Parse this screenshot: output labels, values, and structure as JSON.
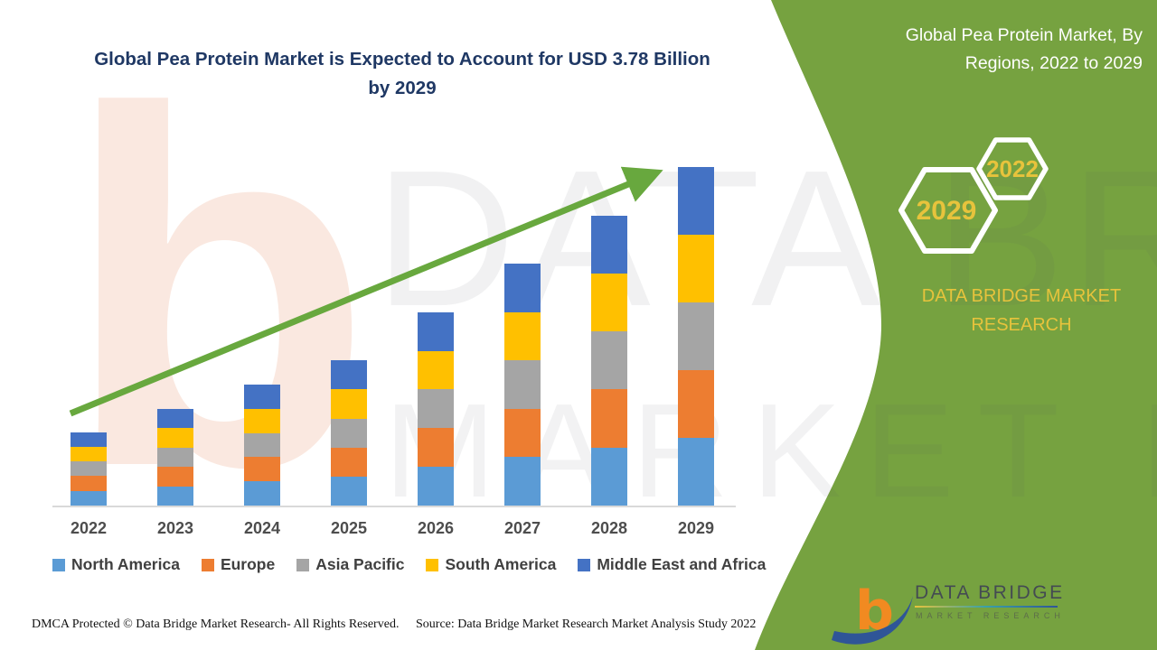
{
  "header": {
    "title_line1": "Global Pea Protein Market is Expected to Account for USD 3.78 Billion",
    "title_line2": "by 2029"
  },
  "side_panel": {
    "heading_line1": "Global Pea Protein Market, By",
    "heading_line2": "Regions, 2022 to 2029",
    "hexagon_small_label": "2022",
    "hexagon_large_label": "2029",
    "brand_line1": "DATA BRIDGE MARKET",
    "brand_line2": "RESEARCH",
    "panel_color": "#76A240",
    "gold_color": "#E7C33C"
  },
  "logo": {
    "name": "DATA BRIDGE",
    "tagline": "MARKET RESEARCH"
  },
  "watermark": {
    "line1": "DATA BRIDGE",
    "line2": "MARKET RESEARCH",
    "letter_b": "b"
  },
  "footer": {
    "dmca": "DMCA Protected © Data Bridge Market Research- All Rights Reserved.",
    "source": "Source: Data Bridge Market Research Market Analysis Study 2022"
  },
  "chart_data": {
    "type": "bar",
    "stacked": true,
    "title": "Global Pea Protein Market is Expected to Account for USD 3.78 Billion by 2029",
    "unit": "USD Billion",
    "categories": [
      "2022",
      "2023",
      "2024",
      "2025",
      "2026",
      "2027",
      "2028",
      "2029"
    ],
    "series": [
      {
        "name": "North America",
        "color": "#5B9BD5",
        "values": [
          0.164,
          0.216,
          0.27,
          0.324,
          0.432,
          0.54,
          0.648,
          0.756
        ]
      },
      {
        "name": "Europe",
        "color": "#ED7D31",
        "values": [
          0.164,
          0.216,
          0.27,
          0.324,
          0.432,
          0.54,
          0.648,
          0.756
        ]
      },
      {
        "name": "Asia Pacific",
        "color": "#A5A5A5",
        "values": [
          0.164,
          0.216,
          0.27,
          0.324,
          0.432,
          0.54,
          0.648,
          0.756
        ]
      },
      {
        "name": "South America",
        "color": "#FFC000",
        "values": [
          0.164,
          0.216,
          0.27,
          0.324,
          0.432,
          0.54,
          0.648,
          0.756
        ]
      },
      {
        "name": "Middle East and Africa",
        "color": "#4472C4",
        "values": [
          0.164,
          0.216,
          0.27,
          0.324,
          0.432,
          0.54,
          0.648,
          0.756
        ]
      }
    ],
    "totals": [
      0.82,
      1.08,
      1.35,
      1.62,
      2.16,
      2.7,
      3.24,
      3.78
    ],
    "ylim": [
      0,
      3.9
    ],
    "grid": false,
    "legend_position": "bottom",
    "trend_arrow": true,
    "arrow_color": "#68A83E",
    "axis_color": "#d9d9d9"
  }
}
